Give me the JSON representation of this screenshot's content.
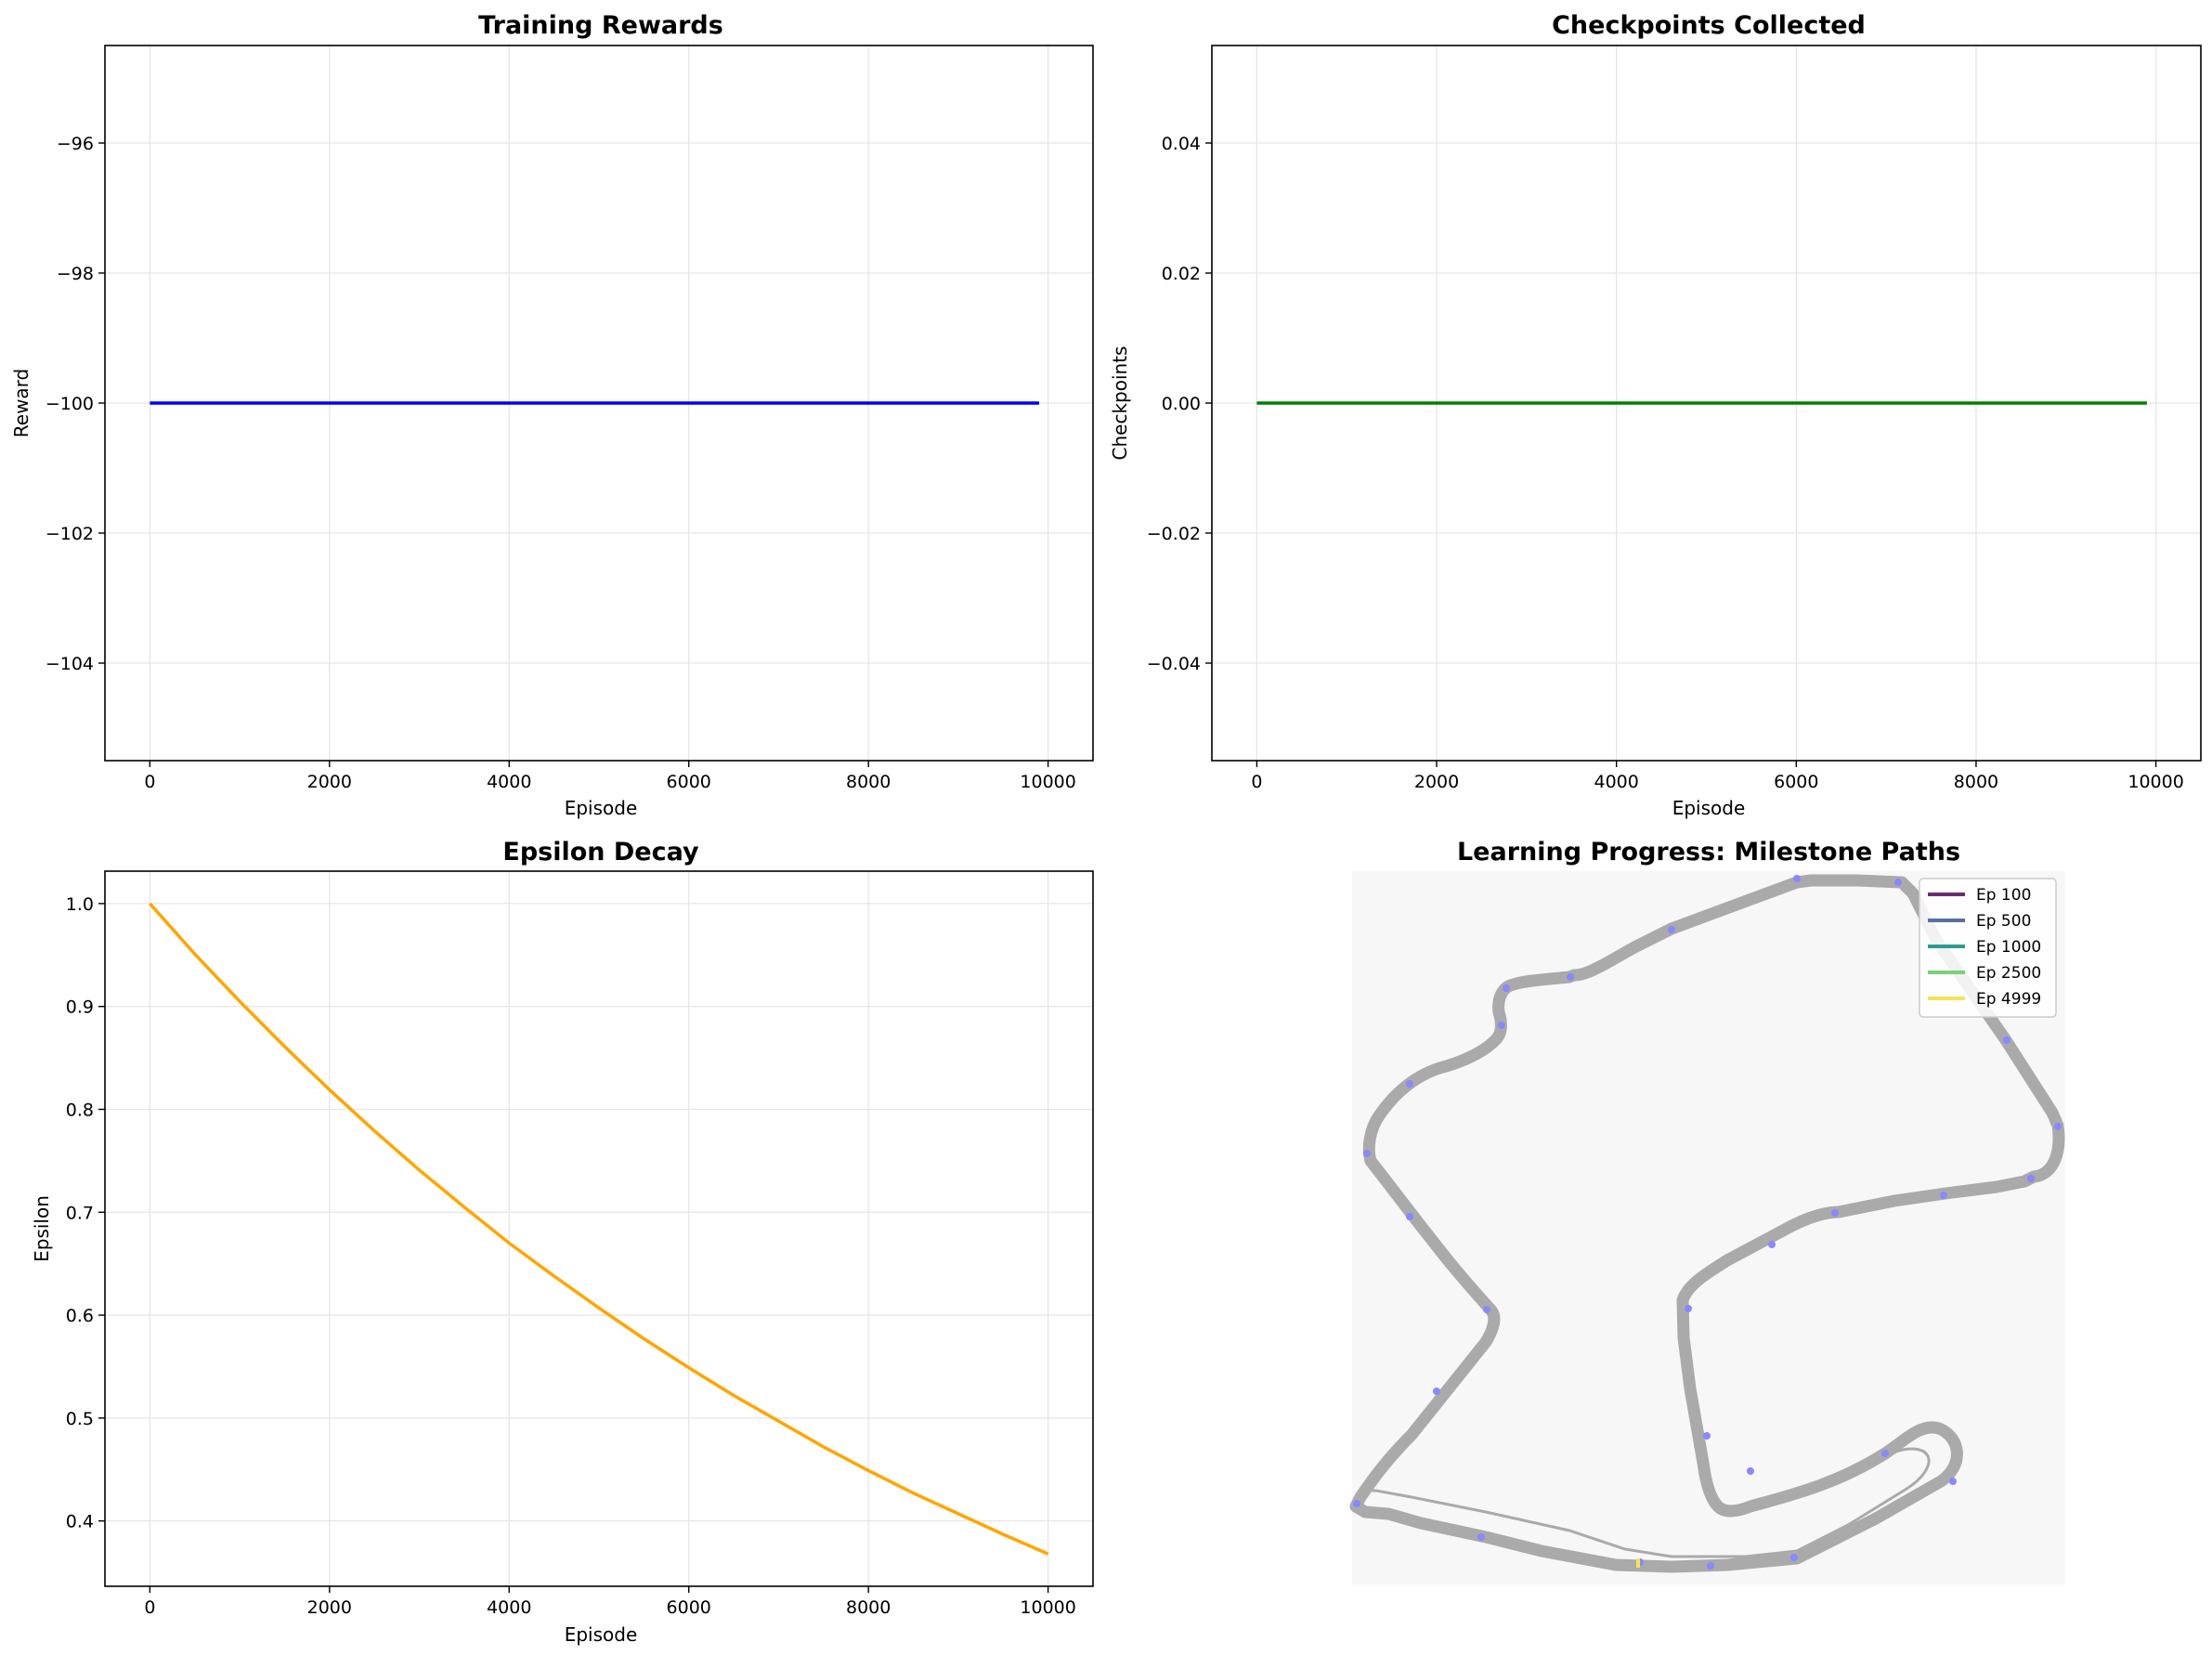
{
  "chart_data": [
    {
      "type": "line",
      "title": "Training Rewards",
      "xlabel": "Episode",
      "ylabel": "Reward",
      "xlim": [
        -500,
        10500
      ],
      "ylim": [
        -105.5,
        -94.5
      ],
      "xticks": [
        0,
        2000,
        4000,
        6000,
        8000,
        10000
      ],
      "yticks": [
        -104,
        -102,
        -100,
        -98,
        -96
      ],
      "xtick_labels": [
        "0",
        "2000",
        "4000",
        "6000",
        "8000",
        "10000"
      ],
      "ytick_labels": [
        "−104",
        "−102",
        "−100",
        "−98",
        "−96"
      ],
      "grid": true,
      "series": [
        {
          "color": "#0000ff",
          "x": [
            0,
            9900
          ],
          "y": [
            -100,
            -100
          ]
        }
      ]
    },
    {
      "type": "line",
      "title": "Checkpoints Collected",
      "xlabel": "Episode",
      "ylabel": "Checkpoints",
      "xlim": [
        -500,
        10500
      ],
      "ylim": [
        -0.055,
        0.055
      ],
      "xticks": [
        0,
        2000,
        4000,
        6000,
        8000,
        10000
      ],
      "yticks": [
        -0.04,
        -0.02,
        0.0,
        0.02,
        0.04
      ],
      "xtick_labels": [
        "0",
        "2000",
        "4000",
        "6000",
        "8000",
        "10000"
      ],
      "ytick_labels": [
        "−0.04",
        "−0.02",
        "0.00",
        "0.02",
        "0.04"
      ],
      "grid": true,
      "series": [
        {
          "color": "#008000",
          "x": [
            0,
            9900
          ],
          "y": [
            0,
            0
          ]
        }
      ]
    },
    {
      "type": "line",
      "title": "Epsilon Decay",
      "xlabel": "Episode",
      "ylabel": "Epsilon",
      "xlim": [
        -500,
        10500
      ],
      "ylim": [
        0.3365,
        1.0315
      ],
      "xticks": [
        0,
        2000,
        4000,
        6000,
        8000,
        10000
      ],
      "yticks": [
        0.4,
        0.5,
        0.6,
        0.7,
        0.8,
        0.9,
        1.0
      ],
      "xtick_labels": [
        "0",
        "2000",
        "4000",
        "6000",
        "8000",
        "10000"
      ],
      "ytick_labels": [
        "0.4",
        "0.5",
        "0.6",
        "0.7",
        "0.8",
        "0.9",
        "1.0"
      ],
      "grid": true,
      "series": [
        {
          "color": "#ffa500",
          "x": [
            0,
            500,
            1000,
            1500,
            2000,
            2500,
            3000,
            3500,
            4000,
            4500,
            5000,
            5500,
            6000,
            6500,
            7000,
            7500,
            8000,
            8500,
            9000,
            9500,
            10000
          ],
          "y": [
            1.0,
            0.951,
            0.905,
            0.861,
            0.819,
            0.779,
            0.741,
            0.705,
            0.67,
            0.638,
            0.607,
            0.577,
            0.549,
            0.522,
            0.497,
            0.472,
            0.449,
            0.427,
            0.407,
            0.387,
            0.368
          ]
        }
      ]
    },
    {
      "type": "map",
      "title": "Learning Progress: Milestone Paths",
      "background": "#f7f7f7",
      "track_color": "#aaaaaa",
      "checkpoint_color": "#8888ff",
      "legend_position": "top-right",
      "legend": [
        {
          "label": "Ep 100",
          "color": "#6a2c70"
        },
        {
          "label": "Ep 500",
          "color": "#5a6fa3"
        },
        {
          "label": "Ep 1000",
          "color": "#2a9c8f"
        },
        {
          "label": "Ep 2500",
          "color": "#7ad17a"
        },
        {
          "label": "Ep 4999",
          "color": "#f5e356"
        }
      ]
    }
  ]
}
